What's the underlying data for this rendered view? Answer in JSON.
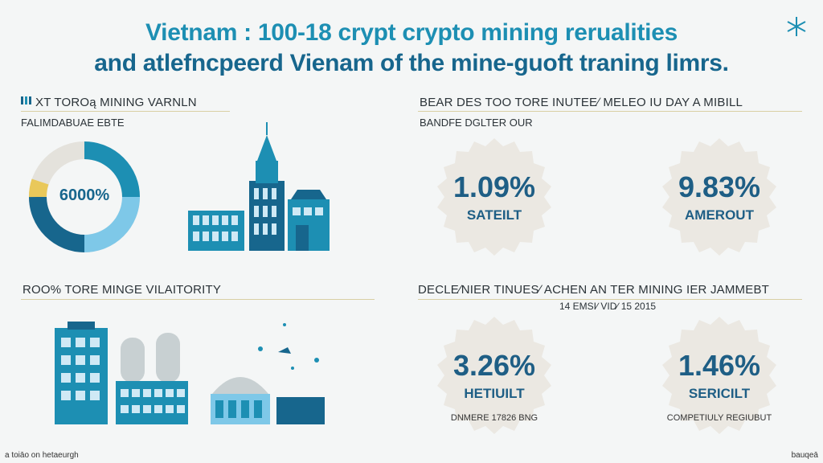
{
  "header": {
    "title_line1": "Vietnam : 100-18 crypt crypto mining rerualities",
    "title_line2": "and atlefncpeerd Vienam of the mine-guoft traning limrs."
  },
  "colors": {
    "accent_blue": "#1d8fb3",
    "dark_blue": "#17668d",
    "light_blue": "#7ec8e8",
    "badge_fill": "#ebe8e2"
  },
  "left_top": {
    "heading": "XT TOROą MINING VARNLN",
    "subheading": "FALIMDABUAE EBTE",
    "donut_label": "6000%"
  },
  "left_bottom": {
    "heading": "ROO% TORE MINGE VILAITORITY"
  },
  "right_top": {
    "heading": "BEAR  DES TOO TORE INUTEE∕ MELEO IU DAY A MIBILL",
    "subheading": "BANDFE DGLTER OUR",
    "badges": [
      {
        "value": "1.09%",
        "label": "SATEILT"
      },
      {
        "value": "9.83%",
        "label": "AMEROUT"
      }
    ]
  },
  "right_bottom": {
    "heading": "DECLE∕NIER TINUES∕ ACHEN AN TER MINING IER JAMMEBT",
    "subheading": "14 EMSI∕ VID∕ 15 2015",
    "badges": [
      {
        "value": "3.26%",
        "label": "HETIUILT",
        "note": "DNMERE 17826 BNG"
      },
      {
        "value": "1.46%",
        "label": "SERICILT",
        "note": "COMPETIULY REGIUBUT"
      }
    ]
  },
  "footer": {
    "left": "a toiāo on hetaeurgh",
    "right": "bauqeā"
  }
}
